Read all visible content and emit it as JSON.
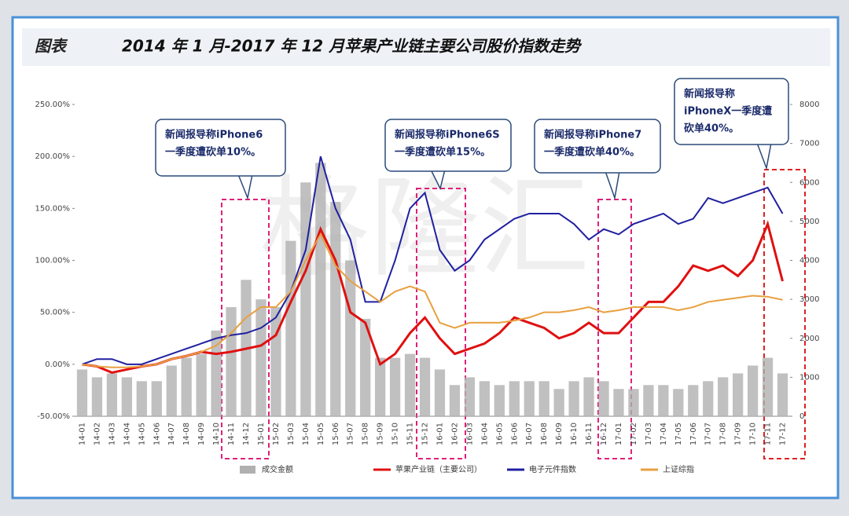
{
  "chart_data": {
    "type": "line",
    "label": "图表",
    "title": "2014 年 1 月-2017 年 12 月苹果产业链主要公司股价指数走势",
    "categories": [
      "14-01",
      "14-02",
      "14-03",
      "14-04",
      "14-05",
      "14-06",
      "14-07",
      "14-08",
      "14-09",
      "14-10",
      "14-11",
      "14-12",
      "15-01",
      "15-02",
      "15-03",
      "15-04",
      "15-05",
      "15-06",
      "15-07",
      "15-08",
      "15-09",
      "15-10",
      "15-11",
      "15-12",
      "16-01",
      "16-02",
      "16-03",
      "16-04",
      "16-05",
      "16-06",
      "16-07",
      "16-08",
      "16-09",
      "16-10",
      "16-11",
      "16-12",
      "17-01",
      "17-02",
      "17-03",
      "17-04",
      "17-05",
      "17-06",
      "17-07",
      "17-08",
      "17-09",
      "17-10",
      "17-11",
      "17-12"
    ],
    "series": [
      {
        "name": "成交金额",
        "type": "bar",
        "axis": "y2",
        "color": "#b0b0b0",
        "values": [
          1200,
          1000,
          1100,
          1000,
          900,
          900,
          1300,
          1500,
          1600,
          2200,
          2800,
          3500,
          3000,
          2800,
          4500,
          6000,
          6500,
          5500,
          4000,
          2500,
          1500,
          1500,
          1600,
          1500,
          1200,
          800,
          1000,
          900,
          800,
          900,
          900,
          900,
          700,
          900,
          1000,
          900,
          700,
          700,
          800,
          800,
          700,
          800,
          900,
          1000,
          1100,
          1300,
          1500,
          1100
        ]
      },
      {
        "name": "苹果产业链（主要公司）",
        "color": "#e01010",
        "values": [
          0,
          -2,
          -8,
          -5,
          -2,
          0,
          5,
          8,
          12,
          10,
          12,
          15,
          18,
          28,
          60,
          90,
          130,
          100,
          50,
          40,
          0,
          10,
          30,
          45,
          25,
          10,
          15,
          20,
          30,
          45,
          40,
          35,
          25,
          30,
          40,
          30,
          30,
          45,
          60,
          60,
          75,
          95,
          90,
          95,
          85,
          100,
          135,
          80
        ]
      },
      {
        "name": "电子元件指数",
        "color": "#2020a0",
        "values": [
          0,
          5,
          5,
          0,
          0,
          5,
          10,
          15,
          20,
          25,
          28,
          30,
          35,
          45,
          70,
          110,
          200,
          150,
          120,
          60,
          60,
          100,
          150,
          165,
          110,
          90,
          100,
          120,
          130,
          140,
          145,
          145,
          145,
          135,
          120,
          130,
          125,
          135,
          140,
          145,
          135,
          140,
          160,
          155,
          160,
          165,
          170,
          145
        ]
      },
      {
        "name": "上证综指",
        "color": "#e8a040",
        "values": [
          0,
          -2,
          -3,
          -3,
          -2,
          0,
          5,
          8,
          12,
          18,
          30,
          45,
          55,
          55,
          70,
          100,
          125,
          95,
          80,
          70,
          60,
          70,
          75,
          70,
          40,
          35,
          40,
          40,
          40,
          42,
          45,
          50,
          50,
          52,
          55,
          50,
          52,
          55,
          55,
          55,
          52,
          55,
          60,
          62,
          64,
          66,
          65,
          62
        ]
      }
    ],
    "ylim": [
      -50,
      250
    ],
    "yticks": [
      {
        "value": -50,
        "label": "-50.00%"
      },
      {
        "value": 0,
        "label": "0.00%"
      },
      {
        "value": 50,
        "label": "50.00%"
      },
      {
        "value": 100,
        "label": "100.00%"
      },
      {
        "value": 150,
        "label": "150.00%"
      },
      {
        "value": 200,
        "label": "200.00%"
      },
      {
        "value": 250,
        "label": "250.00%"
      }
    ],
    "y2lim": [
      0,
      8000
    ],
    "y2ticks": [
      0,
      1000,
      2000,
      3000,
      4000,
      5000,
      6000,
      7000,
      8000
    ],
    "legend": "bottom",
    "grid": false,
    "watermark": "格隆汇",
    "annotations": [
      {
        "lines": [
          "新闻报导称iPhone6",
          "一季度遭砍单10%。"
        ]
      },
      {
        "lines": [
          "新闻报导称iPhone6S",
          "一季度遭砍单15%。"
        ]
      },
      {
        "lines": [
          "新闻报导称iPhone7",
          "一季度遭砍单40%。"
        ]
      },
      {
        "lines": [
          "新闻报导称",
          "iPhoneX一季度遭",
          "砍单40%。"
        ]
      }
    ]
  }
}
